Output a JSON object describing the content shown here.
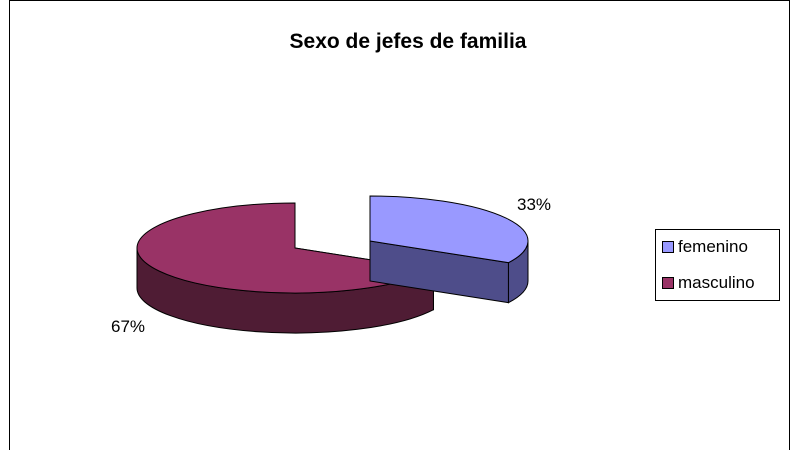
{
  "chart_data": {
    "type": "pie",
    "title": "Sexo de jefes de familia",
    "categories": [
      "femenino",
      "masculino"
    ],
    "values": [
      33,
      67
    ],
    "data_labels": [
      "33%",
      "67%"
    ],
    "colors": {
      "femenino": {
        "top": "#9999ff",
        "side": "#4e4d8a",
        "edge": "#000000"
      },
      "masculino": {
        "top": "#993366",
        "side": "#4f1c34",
        "edge": "#000000"
      }
    },
    "style": "3d-exploded",
    "legend": "right"
  }
}
